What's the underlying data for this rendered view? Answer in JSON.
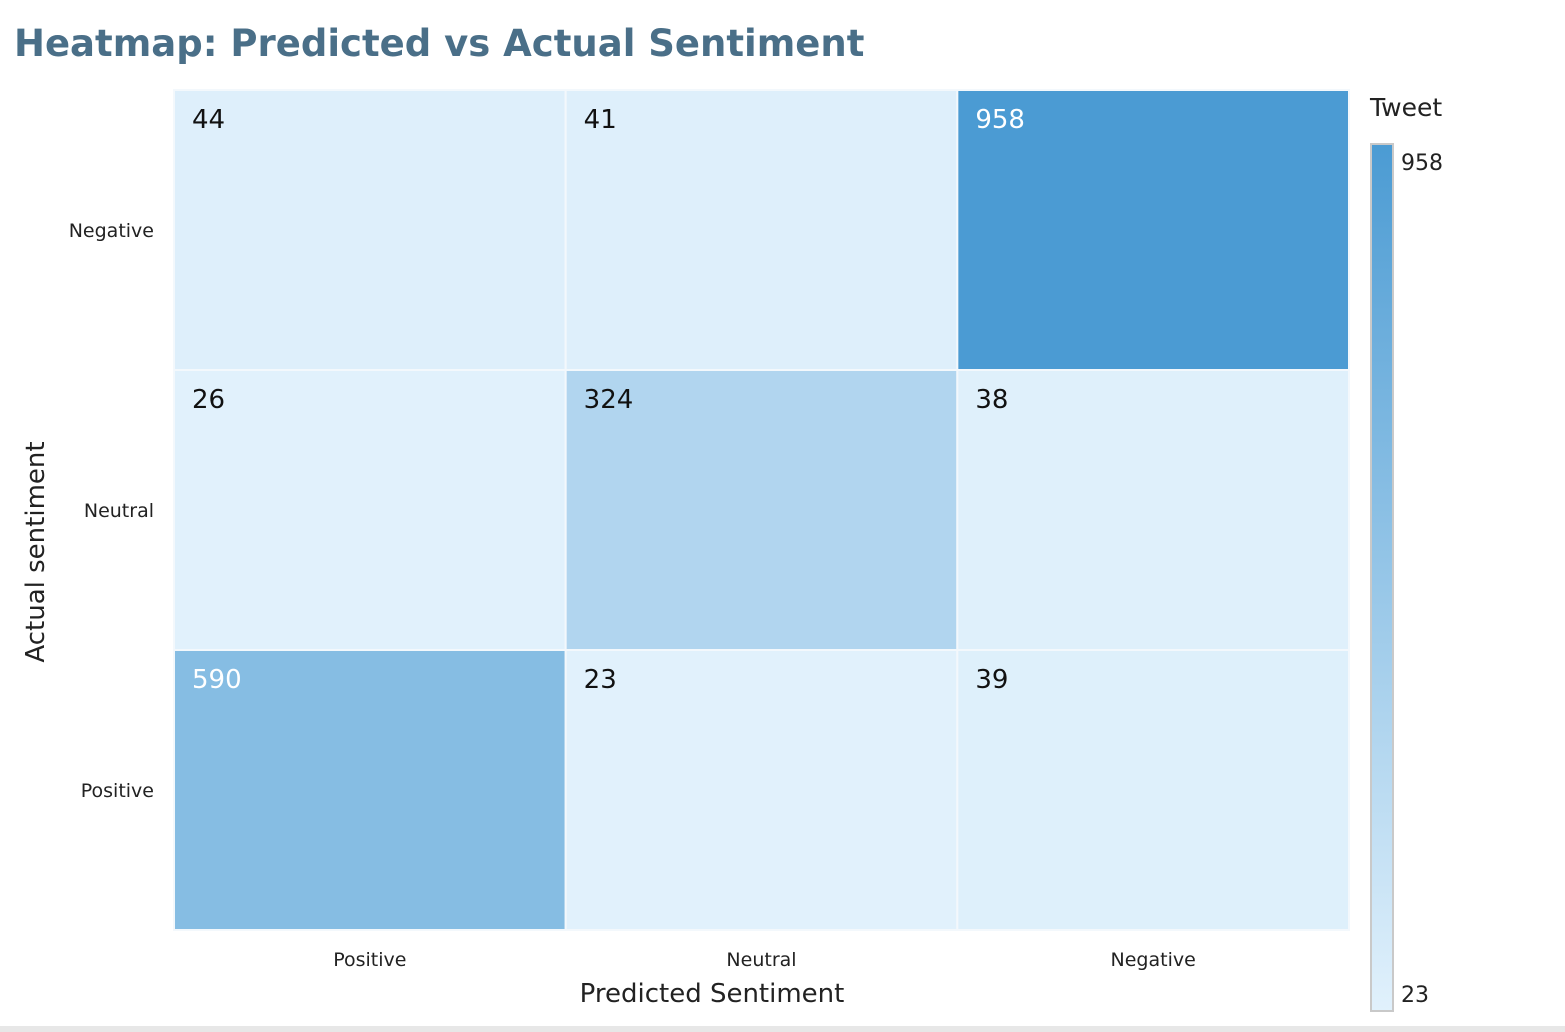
{
  "chart_data": {
    "type": "heatmap",
    "title": "Heatmap: Predicted vs Actual Sentiment",
    "xlabel": "Predicted Sentiment",
    "ylabel": "Actual sentiment",
    "x_categories": [
      "Positive",
      "Neutral",
      "Negative"
    ],
    "y_categories": [
      "Negative",
      "Neutral",
      "Positive"
    ],
    "values": [
      [
        44,
        41,
        958
      ],
      [
        26,
        324,
        38
      ],
      [
        590,
        23,
        39
      ]
    ],
    "legend": {
      "title": "Tweet",
      "min": 23,
      "max": 958,
      "placement": "right"
    },
    "colors": {
      "low": "#e1f1fc",
      "high": "#4b9bd3",
      "text_dark": "#111111",
      "text_light": "#ffffff"
    }
  }
}
